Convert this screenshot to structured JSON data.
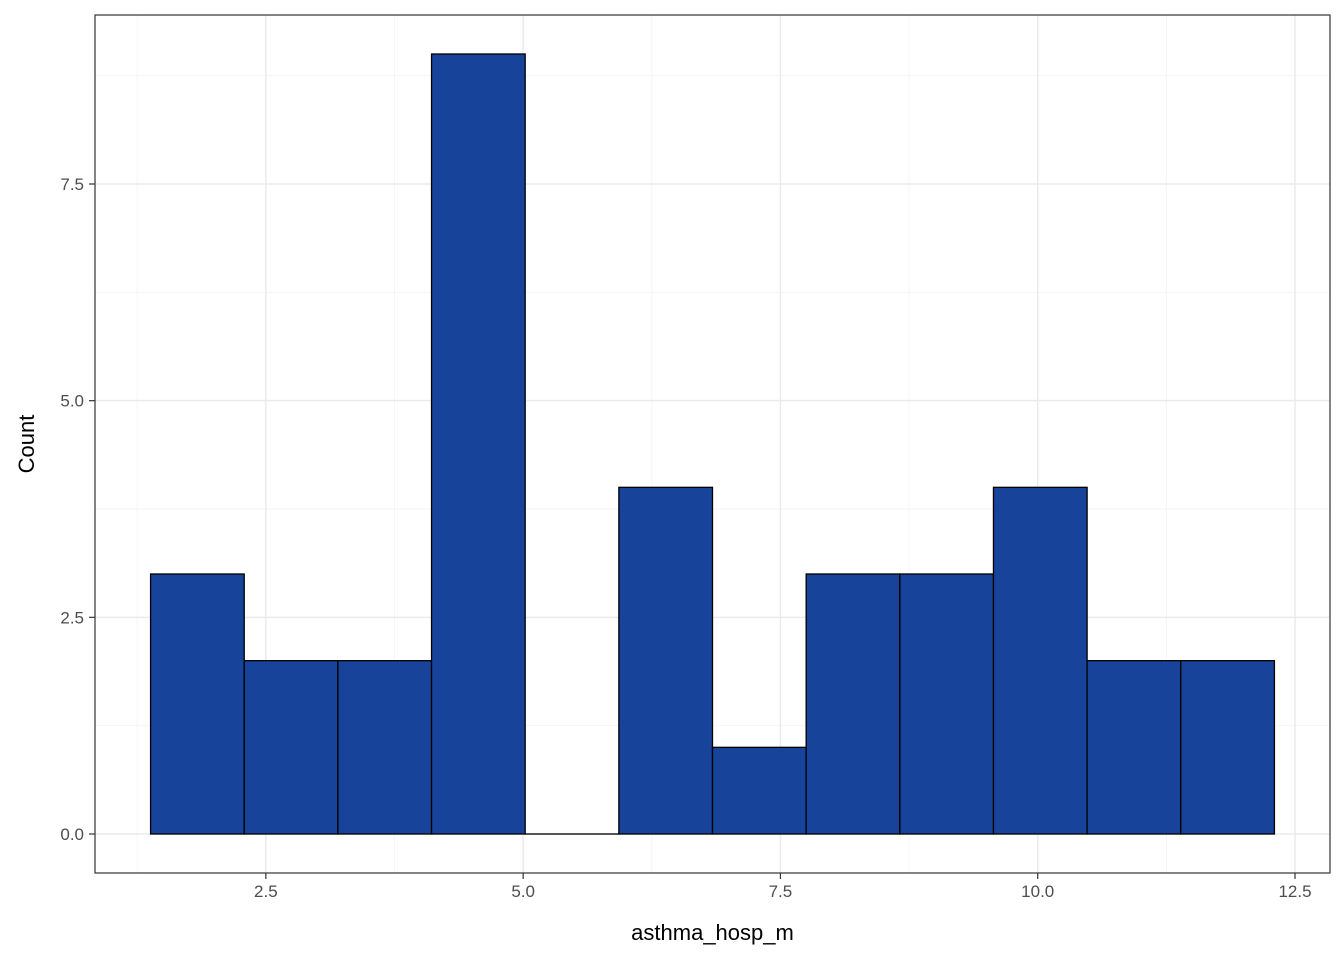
{
  "chart_data": {
    "type": "bar",
    "subtype": "histogram",
    "title": "",
    "xlabel": "asthma_hosp_m",
    "ylabel": "Count",
    "bins": [
      {
        "x0": 1.38,
        "x1": 2.29,
        "count": 3
      },
      {
        "x0": 2.29,
        "x1": 3.2,
        "count": 2
      },
      {
        "x0": 3.2,
        "x1": 4.11,
        "count": 2
      },
      {
        "x0": 4.11,
        "x1": 5.02,
        "count": 9
      },
      {
        "x0": 5.02,
        "x1": 5.93,
        "count": 0
      },
      {
        "x0": 5.93,
        "x1": 6.84,
        "count": 4
      },
      {
        "x0": 6.84,
        "x1": 7.75,
        "count": 1
      },
      {
        "x0": 7.75,
        "x1": 8.66,
        "count": 3
      },
      {
        "x0": 8.66,
        "x1": 9.57,
        "count": 3
      },
      {
        "x0": 9.57,
        "x1": 10.48,
        "count": 4
      },
      {
        "x0": 10.48,
        "x1": 11.39,
        "count": 2
      },
      {
        "x0": 11.39,
        "x1": 12.3,
        "count": 2
      }
    ],
    "xlim": [
      0.84,
      12.84
    ],
    "ylim": [
      -0.45,
      9.45
    ],
    "x_ticks": [
      2.5,
      5.0,
      7.5,
      10.0,
      12.5
    ],
    "x_tick_labels": [
      "2.5",
      "5.0",
      "7.5",
      "10.0",
      "12.5"
    ],
    "y_ticks": [
      0,
      2.5,
      5,
      7.5
    ],
    "y_tick_labels": [
      "0.0",
      "2.5",
      "5.0",
      "7.5"
    ],
    "grid": true,
    "colors": {
      "bar_fill": "#17449a",
      "bar_stroke": "#000000",
      "grid_major": "#ebebeb",
      "grid_minor": "#f5f5f5",
      "panel_border": "#333333"
    }
  }
}
